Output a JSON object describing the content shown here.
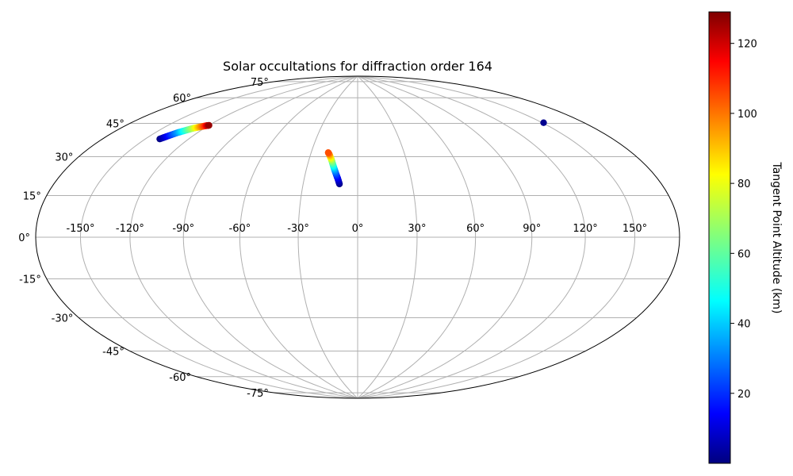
{
  "chart_data": {
    "type": "scatter",
    "projection": "hammer",
    "title": "Solar occultations for diffraction order 164",
    "xlabel": "",
    "ylabel": "",
    "x_ticks": [
      "-150°",
      "-120°",
      "-90°",
      "-60°",
      "-30°",
      "0°",
      "30°",
      "60°",
      "90°",
      "120°",
      "150°"
    ],
    "y_ticks": [
      "-75°",
      "-60°",
      "-45°",
      "-30°",
      "-15°",
      "0°",
      "15°",
      "30°",
      "45°",
      "60°",
      "75°"
    ],
    "xlim": [
      -180,
      180
    ],
    "ylim": [
      -90,
      90
    ],
    "grid": true,
    "colorbar": {
      "label": "Tangent Point Altitude (km)",
      "colormap": "jet",
      "range": [
        0,
        129
      ],
      "ticks": [
        "20",
        "40",
        "60",
        "80",
        "100",
        "120"
      ]
    },
    "series": [
      {
        "x": [
          -140,
          -137,
          -134,
          -131,
          -128,
          -125,
          -122,
          -120
        ],
        "y": [
          43,
          45,
          47,
          48.5,
          50,
          51,
          52,
          52.5
        ],
        "altitude": [
          0,
          18,
          36,
          54,
          72,
          90,
          108,
          126
        ]
      },
      {
        "x": [
          -10,
          -11,
          -12,
          -13,
          -14,
          -15,
          -16,
          -17,
          -18,
          -19
        ],
        "y": [
          27,
          29.5,
          31.5,
          33.5,
          35.5,
          37.5,
          39.5,
          41,
          42.5,
          43.5
        ],
        "altitude": [
          1,
          10,
          20,
          30,
          42,
          55,
          68,
          80,
          92,
          103
        ]
      },
      {
        "x": [
          151
        ],
        "y": [
          50
        ],
        "altitude": [
          2
        ]
      }
    ]
  }
}
